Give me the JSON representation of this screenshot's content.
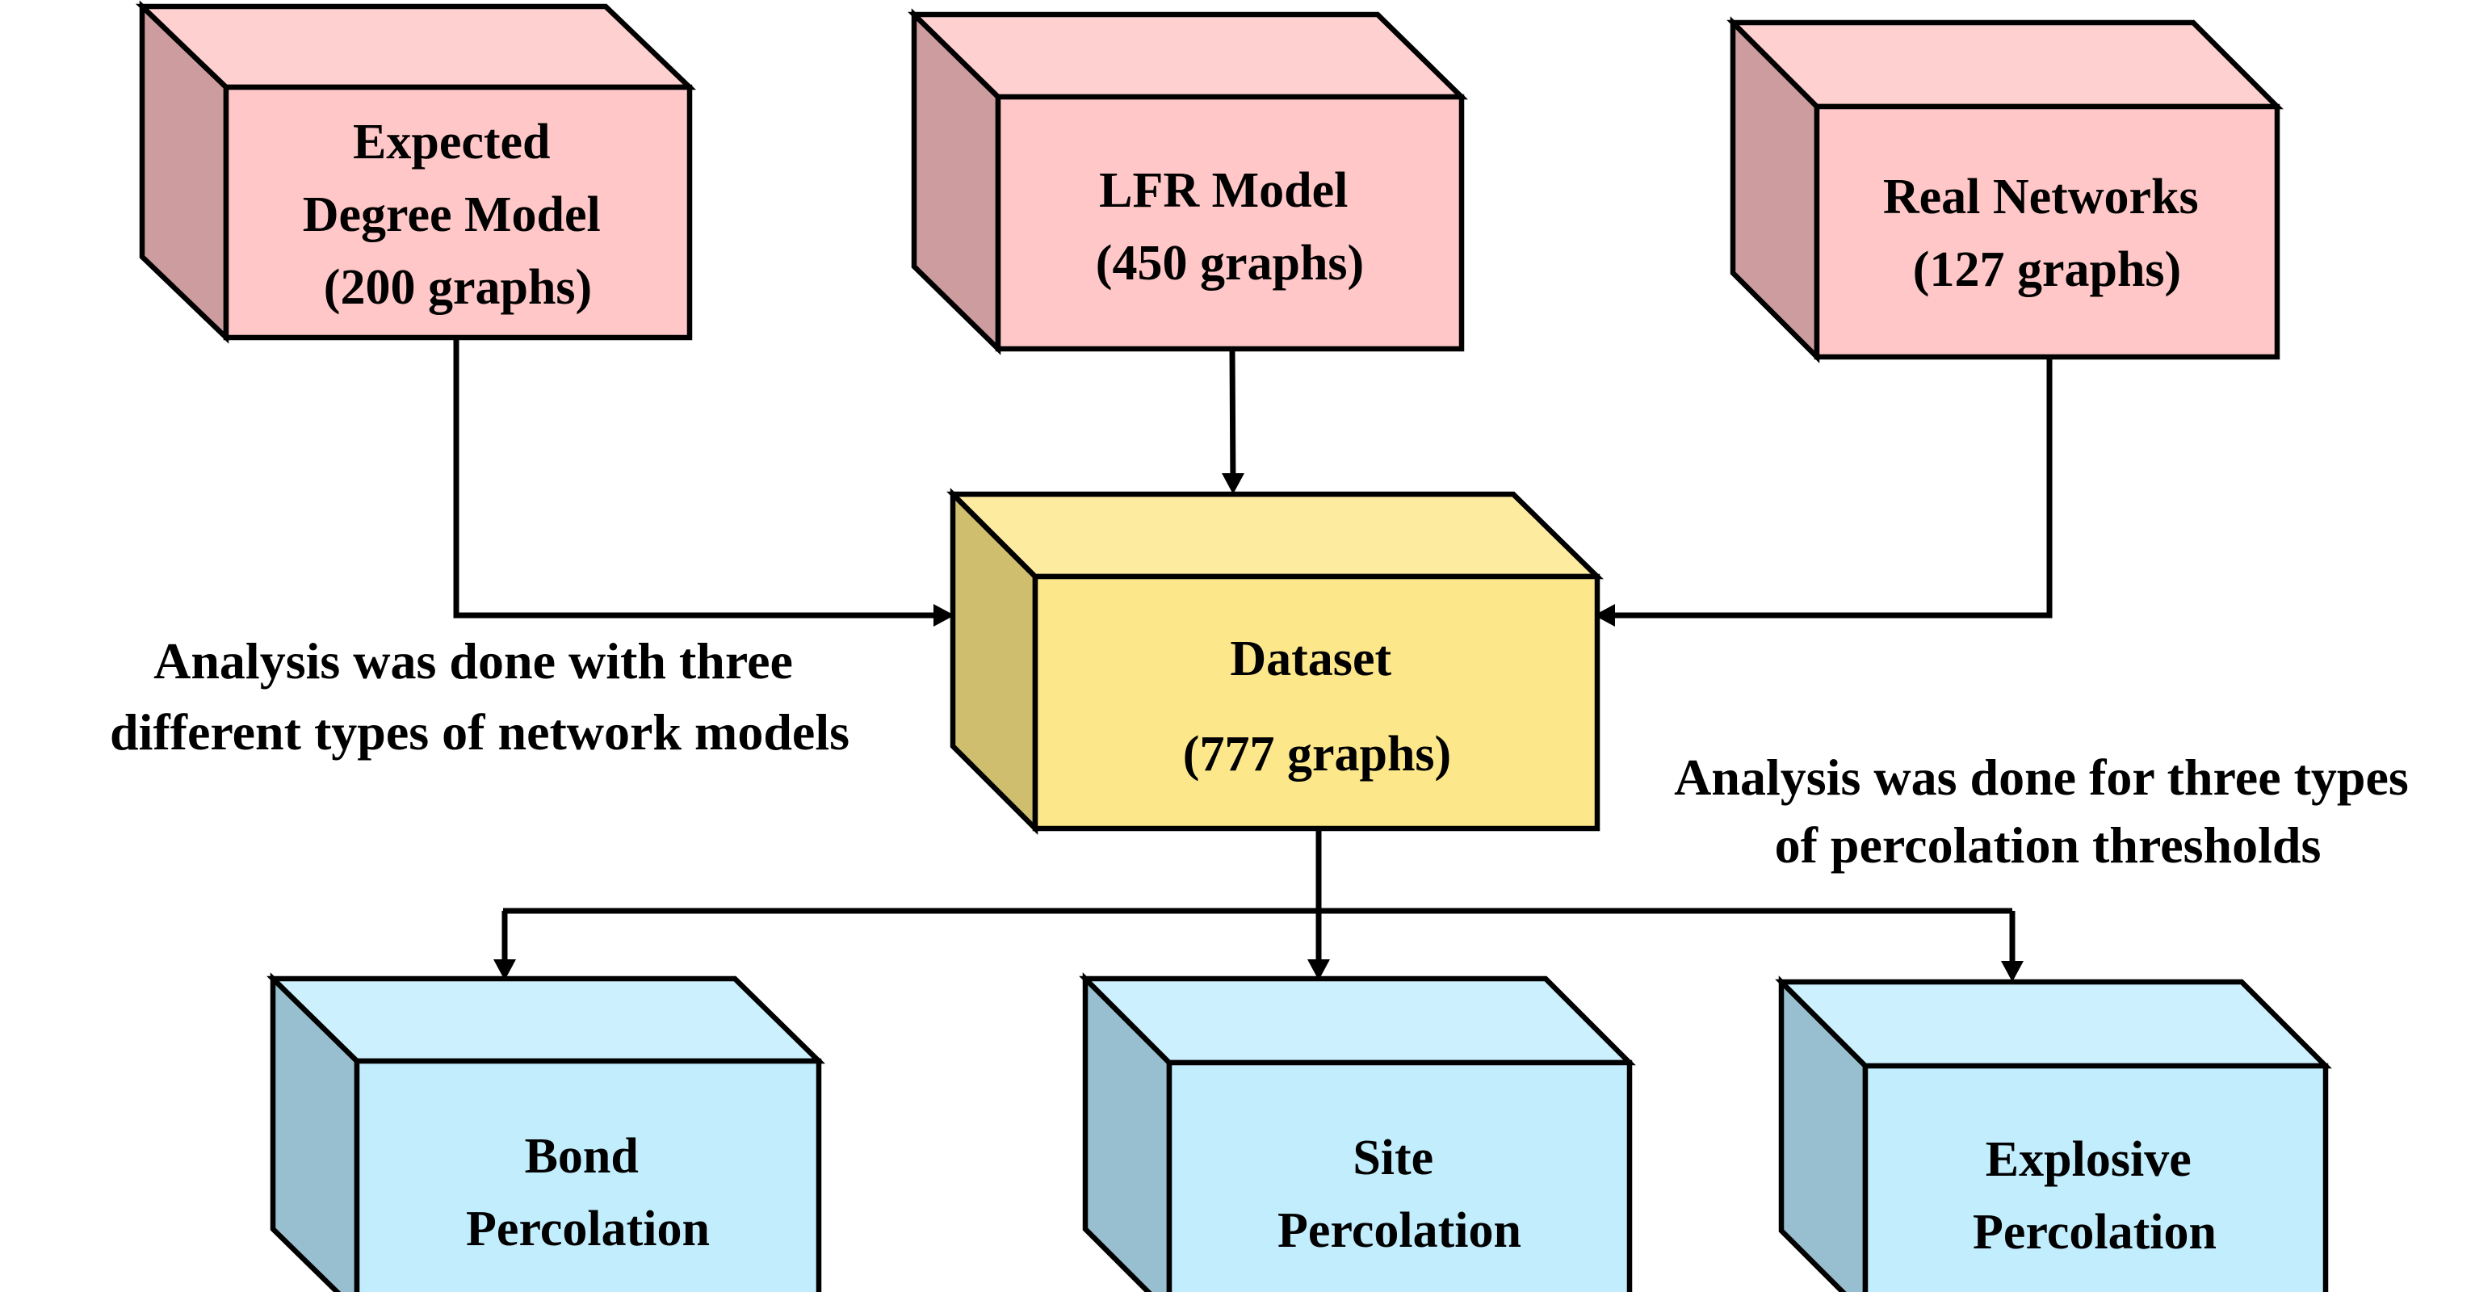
{
  "colors": {
    "source_front": "#FFC7C7",
    "source_top": "#FFD0D0",
    "source_side": "#CC9C9E",
    "dataset_front": "#FDE78B",
    "dataset_top": "#FDEBA0",
    "dataset_side": "#CEBE6E",
    "output_front": "#C2EDFD",
    "output_top": "#CCF0FD",
    "output_side": "#98BFCF",
    "line": "#000000"
  },
  "sources": [
    {
      "lines": [
        "Expected",
        "Degree Model",
        "(200 graphs)"
      ]
    },
    {
      "lines": [
        "LFR Model",
        "(450 graphs)"
      ]
    },
    {
      "lines": [
        "Real Networks",
        "(127 graphs)"
      ]
    }
  ],
  "dataset": {
    "lines": [
      "Dataset",
      "(777 graphs)"
    ]
  },
  "outputs": [
    {
      "lines": [
        "Bond",
        "Percolation"
      ]
    },
    {
      "lines": [
        "Site",
        "Percolation"
      ]
    },
    {
      "lines": [
        "Explosive",
        "Percolation"
      ]
    }
  ],
  "notes": {
    "models": [
      "Analysis was done with three",
      "different types of network models"
    ],
    "thresholds": [
      "Analysis was done for three types",
      "of percolation thresholds"
    ]
  }
}
